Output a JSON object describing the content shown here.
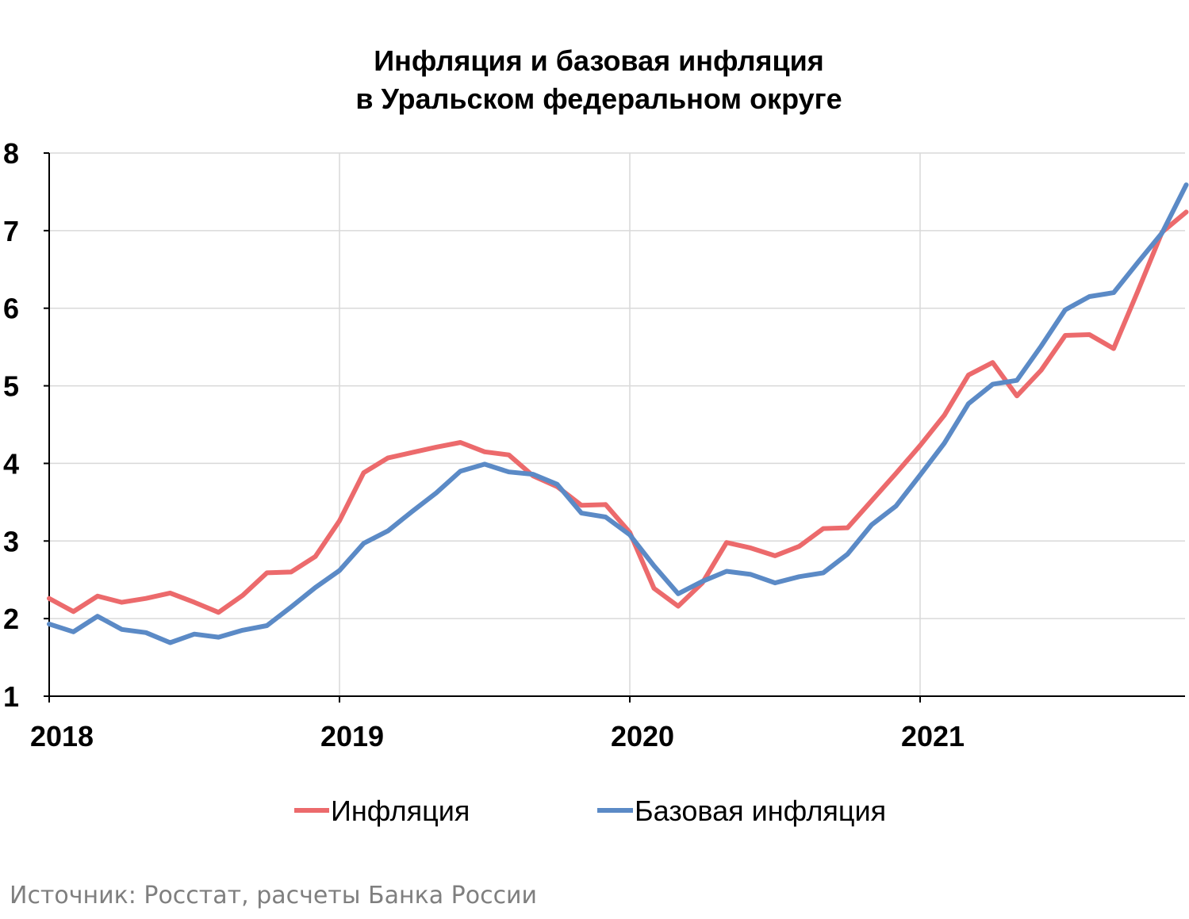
{
  "source_note": "Источник: Росстат, расчеты Банка России",
  "chart_data": {
    "type": "line",
    "title": [
      "Инфляция и базовая инфляция",
      "в  Уральском федеральном округе"
    ],
    "xlabel": "",
    "ylabel": "",
    "x_tick_labels": [
      "2018",
      "2019",
      "2020",
      "2021"
    ],
    "y_tick_labels": [
      "1",
      "2",
      "3",
      "4",
      "5",
      "6",
      "7",
      "8"
    ],
    "ylim": [
      1,
      8
    ],
    "x_start": "2018-01",
    "x_end": "2021-12",
    "grid": true,
    "legend_position": "bottom",
    "colors": {
      "inflation": "#ec6a6c",
      "core": "#5b8ac6",
      "grid": "#d9d9d9",
      "axis": "#000000"
    },
    "x": [
      "2018-01",
      "2018-02",
      "2018-03",
      "2018-04",
      "2018-05",
      "2018-06",
      "2018-07",
      "2018-08",
      "2018-09",
      "2018-10",
      "2018-11",
      "2018-12",
      "2019-01",
      "2019-02",
      "2019-03",
      "2019-04",
      "2019-05",
      "2019-06",
      "2019-07",
      "2019-08",
      "2019-09",
      "2019-10",
      "2019-11",
      "2019-12",
      "2020-01",
      "2020-02",
      "2020-03",
      "2020-04",
      "2020-05",
      "2020-06",
      "2020-07",
      "2020-08",
      "2020-09",
      "2020-10",
      "2020-11",
      "2020-12",
      "2021-01",
      "2021-02",
      "2021-03",
      "2021-04",
      "2021-05",
      "2021-06",
      "2021-07",
      "2021-08",
      "2021-09",
      "2021-10",
      "2021-11",
      "2021-12"
    ],
    "series": [
      {
        "name": "Инфляция",
        "values": [
          2.26,
          2.09,
          2.29,
          2.21,
          2.26,
          2.33,
          2.21,
          2.08,
          2.3,
          2.59,
          2.6,
          2.8,
          3.26,
          3.88,
          4.07,
          4.14,
          4.21,
          4.27,
          4.15,
          4.11,
          3.84,
          3.7,
          3.46,
          3.47,
          3.11,
          2.39,
          2.16,
          2.46,
          2.98,
          2.91,
          2.81,
          2.93,
          3.16,
          3.17,
          3.52,
          3.87,
          4.23,
          4.62,
          5.14,
          5.3,
          4.87,
          5.2,
          5.65,
          5.66,
          5.48,
          6.22,
          6.98,
          7.24
        ]
      },
      {
        "name": "Базовая инфляция",
        "values": [
          1.93,
          1.83,
          2.03,
          1.86,
          1.82,
          1.69,
          1.8,
          1.76,
          1.85,
          1.91,
          2.15,
          2.4,
          2.62,
          2.97,
          3.13,
          3.38,
          3.62,
          3.9,
          3.99,
          3.89,
          3.86,
          3.73,
          3.36,
          3.31,
          3.08,
          2.68,
          2.32,
          2.48,
          2.61,
          2.57,
          2.46,
          2.54,
          2.59,
          2.83,
          3.21,
          3.45,
          3.85,
          4.26,
          4.77,
          5.02,
          5.07,
          5.51,
          5.98,
          6.15,
          6.2,
          6.59,
          6.97,
          7.59
        ]
      }
    ]
  }
}
